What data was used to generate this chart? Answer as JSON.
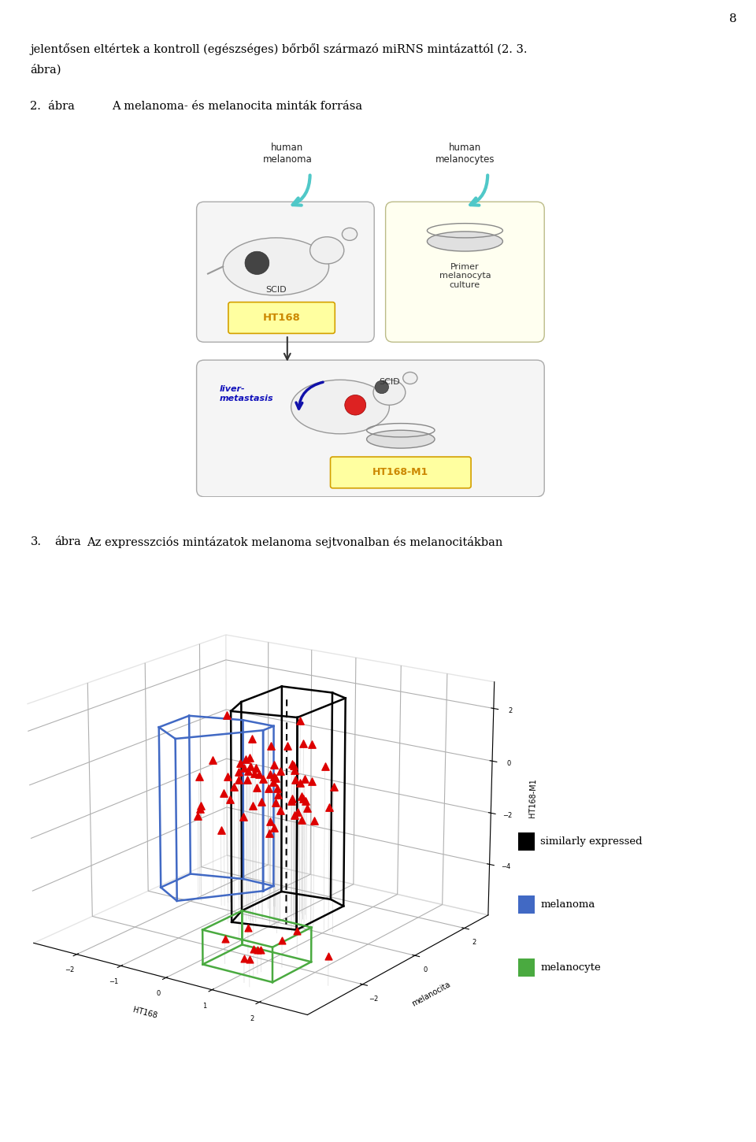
{
  "page_number": "8",
  "bg_color": "#ffffff",
  "text_color": "#000000",
  "para1_line1": "jelentősen eltértek a kontroll (egészséges) bőrből származó miRNS mintázattól (2. 3.",
  "para1_line2": "ábra)",
  "fig2_label": "2.  ábra",
  "fig2_title": "A melanoma- és melanocita minták forrása",
  "fig3_label": "3.",
  "fig3_label2": "ábra",
  "fig3_title": "Az expresszciós mintázatok melanoma sejtvonalban és melanocitákban",
  "legend_similarly": "similarly expressed",
  "legend_melanoma": "melanoma",
  "legend_melanocyte": "melanocyte",
  "similarly_color": "#000000",
  "melanoma_color": "#4169c4",
  "melanocyte_color": "#4aaa40",
  "scatter_color": "#dd0000",
  "axis_label_HT168_M1": "HT168-M1",
  "axis_label_HT168": "HT168",
  "axis_label_melanocita": "melanocita",
  "hm_label": "human\nmelanoma",
  "hmc_label": "human\nmelanocytes",
  "scid_label": "SCID",
  "primer_label": "Primer\nmelanocyta\nculture",
  "liver_label": "liver-\nmetastasis",
  "ht168_label": "HT168",
  "ht168m1_label": "HT168-M1"
}
